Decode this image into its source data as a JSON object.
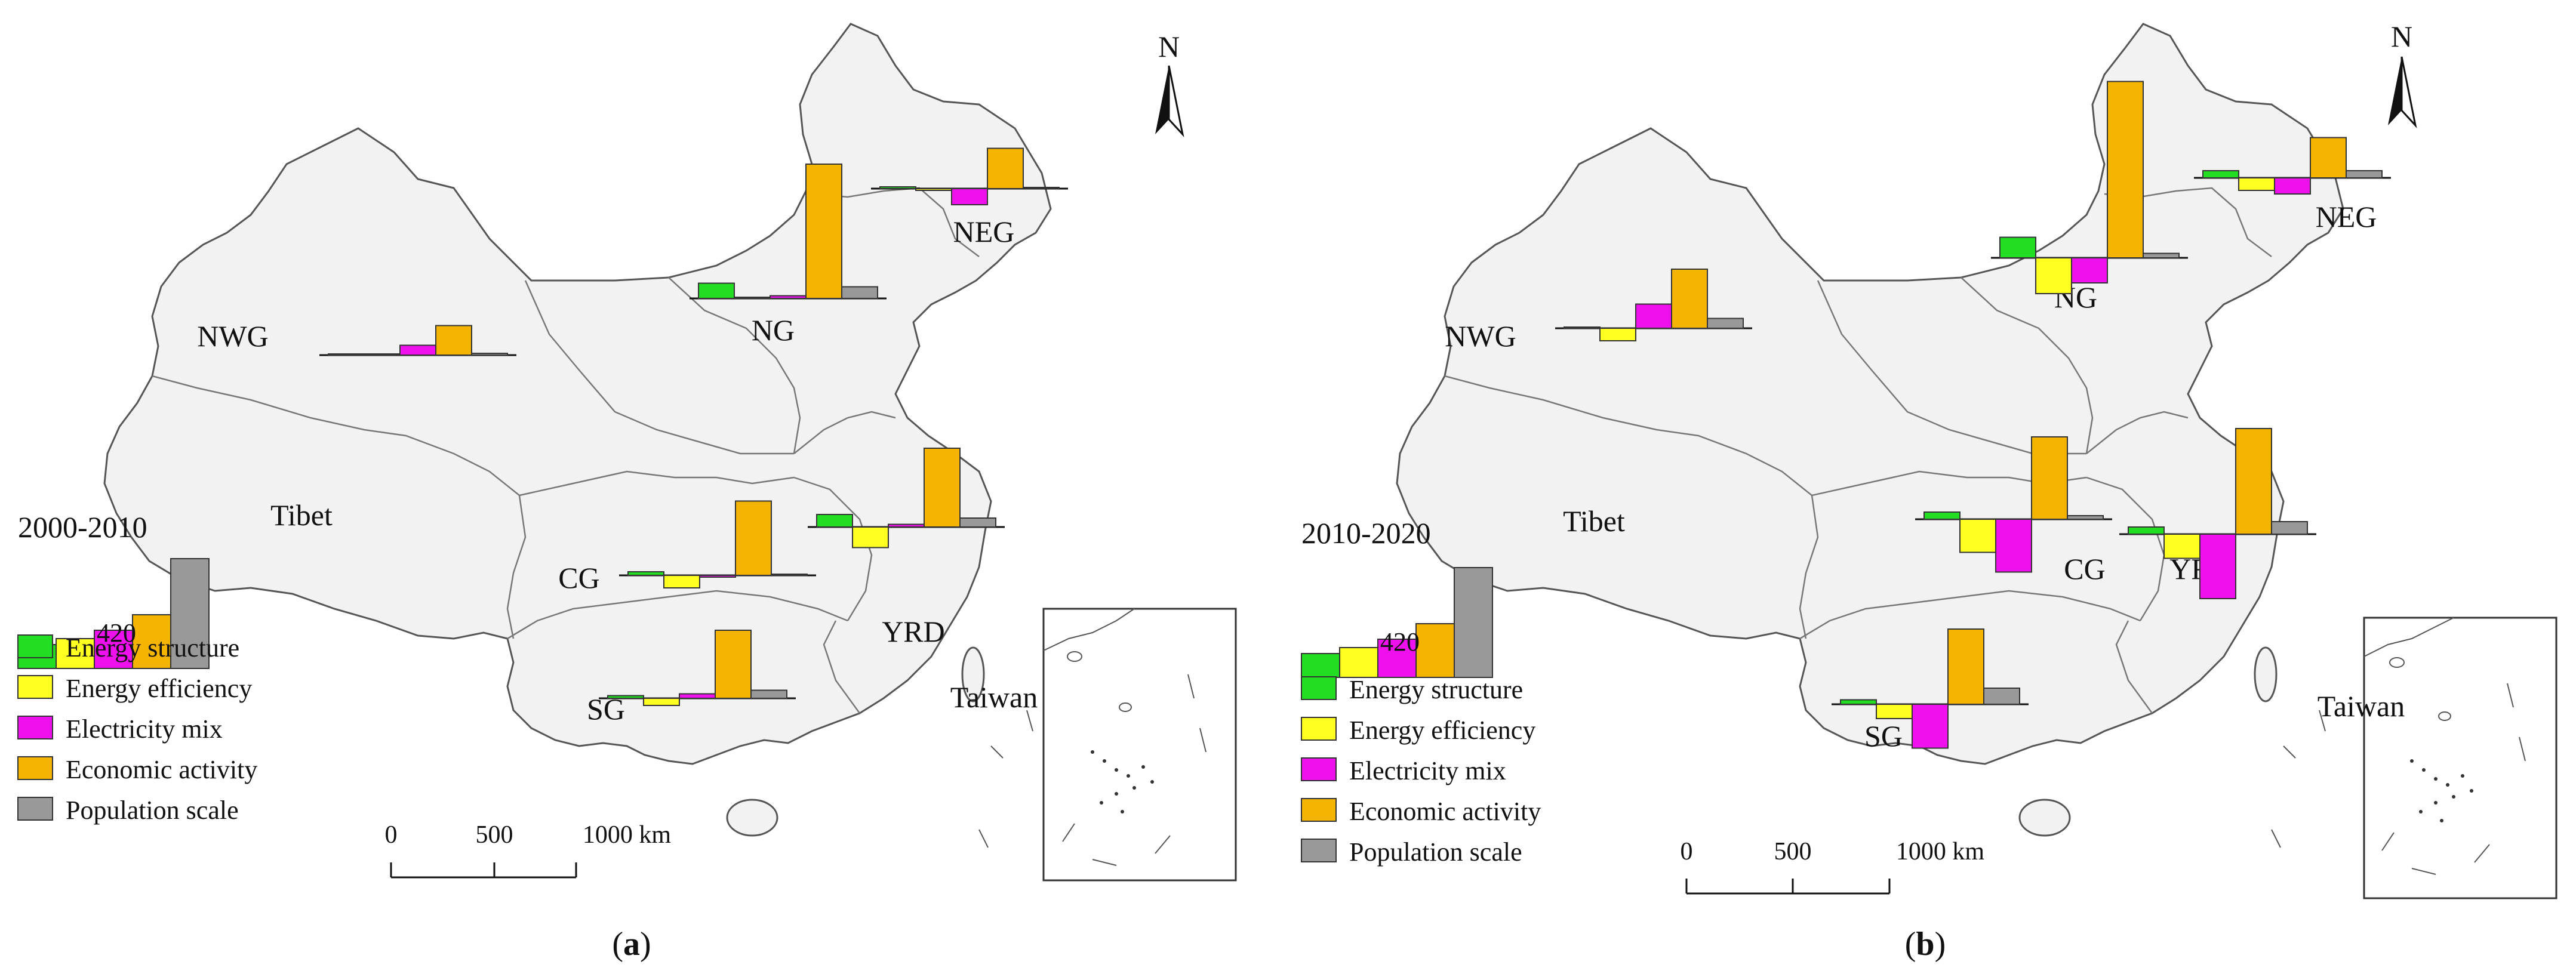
{
  "colors": {
    "energy_structure": "#22dd22",
    "energy_efficiency": "#ffff22",
    "electricity_mix": "#ee11ee",
    "economic_activity": "#f5b400",
    "population_scale": "#999999",
    "land": "#f2f2f2",
    "border": "#555555"
  },
  "legend": {
    "items": [
      {
        "key": "energy_structure",
        "label": "Energy structure"
      },
      {
        "key": "energy_efficiency",
        "label": "Energy efficiency"
      },
      {
        "key": "electricity_mix",
        "label": "Electricity mix"
      },
      {
        "key": "economic_activity",
        "label": "Economic activity"
      },
      {
        "key": "population_scale",
        "label": "Population scale"
      }
    ],
    "reference_value_label": "420"
  },
  "scale_bar": {
    "ticks": [
      "0",
      "500",
      "1000 km"
    ]
  },
  "north_arrow": {
    "label": "N"
  },
  "panels": [
    {
      "id": "a",
      "period": "2000-2010",
      "caption": "a",
      "non_grid_labels": [
        "Tibet",
        "Taiwan"
      ],
      "regions": [
        {
          "name": "NEG",
          "values": [
            2,
            -1,
            -18,
            45,
            0
          ]
        },
        {
          "name": "NG",
          "values": [
            17,
            0,
            3,
            150,
            13
          ]
        },
        {
          "name": "NWG",
          "values": [
            0,
            0,
            11,
            33,
            2
          ]
        },
        {
          "name": "CG",
          "values": [
            4,
            -14,
            -1,
            83,
            0
          ]
        },
        {
          "name": "YRD",
          "values": [
            14,
            -23,
            3,
            88,
            10
          ]
        },
        {
          "name": "SG",
          "values": [
            3,
            -8,
            5,
            76,
            9
          ]
        }
      ]
    },
    {
      "id": "b",
      "period": "2010-2020",
      "caption": "b",
      "non_grid_labels": [
        "Tibet",
        "Taiwan"
      ],
      "regions": [
        {
          "name": "NEG",
          "values": [
            8,
            -14,
            -18,
            45,
            8
          ]
        },
        {
          "name": "NG",
          "values": [
            23,
            -40,
            -28,
            197,
            5
          ]
        },
        {
          "name": "NWG",
          "values": [
            0,
            -14,
            27,
            66,
            11
          ]
        },
        {
          "name": "CG",
          "values": [
            8,
            -37,
            -59,
            92,
            4
          ]
        },
        {
          "name": "YRD",
          "values": [
            8,
            -27,
            -72,
            118,
            14
          ]
        },
        {
          "name": "SG",
          "values": [
            5,
            -16,
            -49,
            84,
            18
          ]
        }
      ]
    }
  ]
}
